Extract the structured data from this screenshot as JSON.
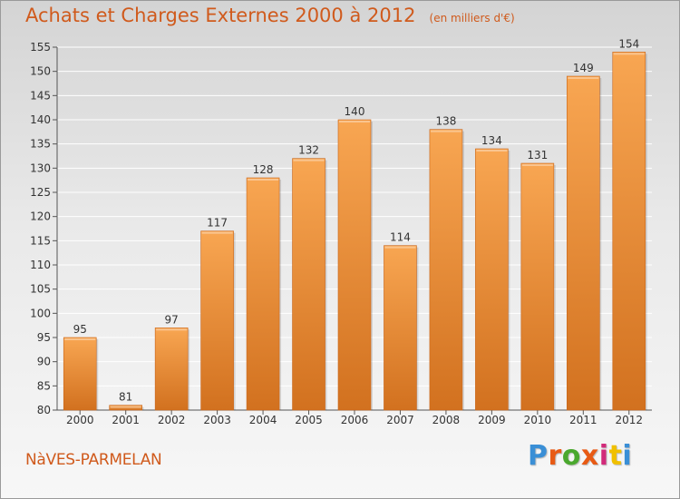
{
  "header": {
    "title": "Achats et Charges Externes 2000 à 2012",
    "subtitle": "(en milliers d'€)"
  },
  "footer": {
    "place": "NàVES-PARMELAN",
    "brand": "Proxiti",
    "brand_colors": [
      "#3a8fd6",
      "#e85a14",
      "#4aa82e",
      "#e85a14",
      "#d22a7a",
      "#f0c000",
      "#3a8fd6"
    ]
  },
  "colors": {
    "bar_light": "#f8a652",
    "bar_dark": "#d2711f",
    "title": "#d05a1c",
    "grid": "#ffffff"
  },
  "chart_data": {
    "type": "bar",
    "title": "Achats et Charges Externes 2000 à 2012",
    "subtitle": "(en milliers d'€)",
    "xlabel": "",
    "ylabel": "",
    "categories": [
      "2000",
      "2001",
      "2002",
      "2003",
      "2004",
      "2005",
      "2006",
      "2007",
      "2008",
      "2009",
      "2010",
      "2011",
      "2012"
    ],
    "values": [
      95,
      81,
      97,
      117,
      128,
      132,
      140,
      114,
      138,
      134,
      131,
      149,
      154
    ],
    "ylim": [
      80,
      155
    ],
    "yticks": [
      80,
      85,
      90,
      95,
      100,
      105,
      110,
      115,
      120,
      125,
      130,
      135,
      140,
      145,
      150,
      155
    ],
    "grid": true,
    "data_labels": true
  }
}
